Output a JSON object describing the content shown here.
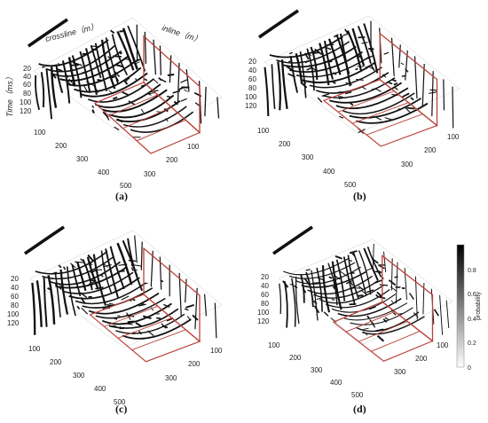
{
  "figure": {
    "axis_labels": {
      "crossline": "crossline（m）",
      "inline": "inline（m）",
      "time": "Time（ms）"
    },
    "time_ticks": [
      "20",
      "40",
      "60",
      "80",
      "100",
      "120"
    ],
    "crossline_ticks": [
      "100",
      "200",
      "300",
      "400",
      "500"
    ],
    "inline_ticks": [
      "100",
      "200",
      "300"
    ],
    "panels": [
      {
        "label": "(a)",
        "show_axis_titles": true
      },
      {
        "label": "(b)",
        "show_axis_titles": false
      },
      {
        "label": "(c)",
        "show_axis_titles": false
      },
      {
        "label": "(d)",
        "show_axis_titles": false
      }
    ],
    "colorbar": {
      "label": "probability",
      "ticks": [
        "0",
        "0.2",
        "0.4",
        "0.6",
        "0.8"
      ],
      "colors": {
        "low": "#ffffff",
        "high": "#000000"
      }
    },
    "colors": {
      "fault": "#111111",
      "highlight": "#b9413a",
      "grid": "#cccccc"
    }
  }
}
